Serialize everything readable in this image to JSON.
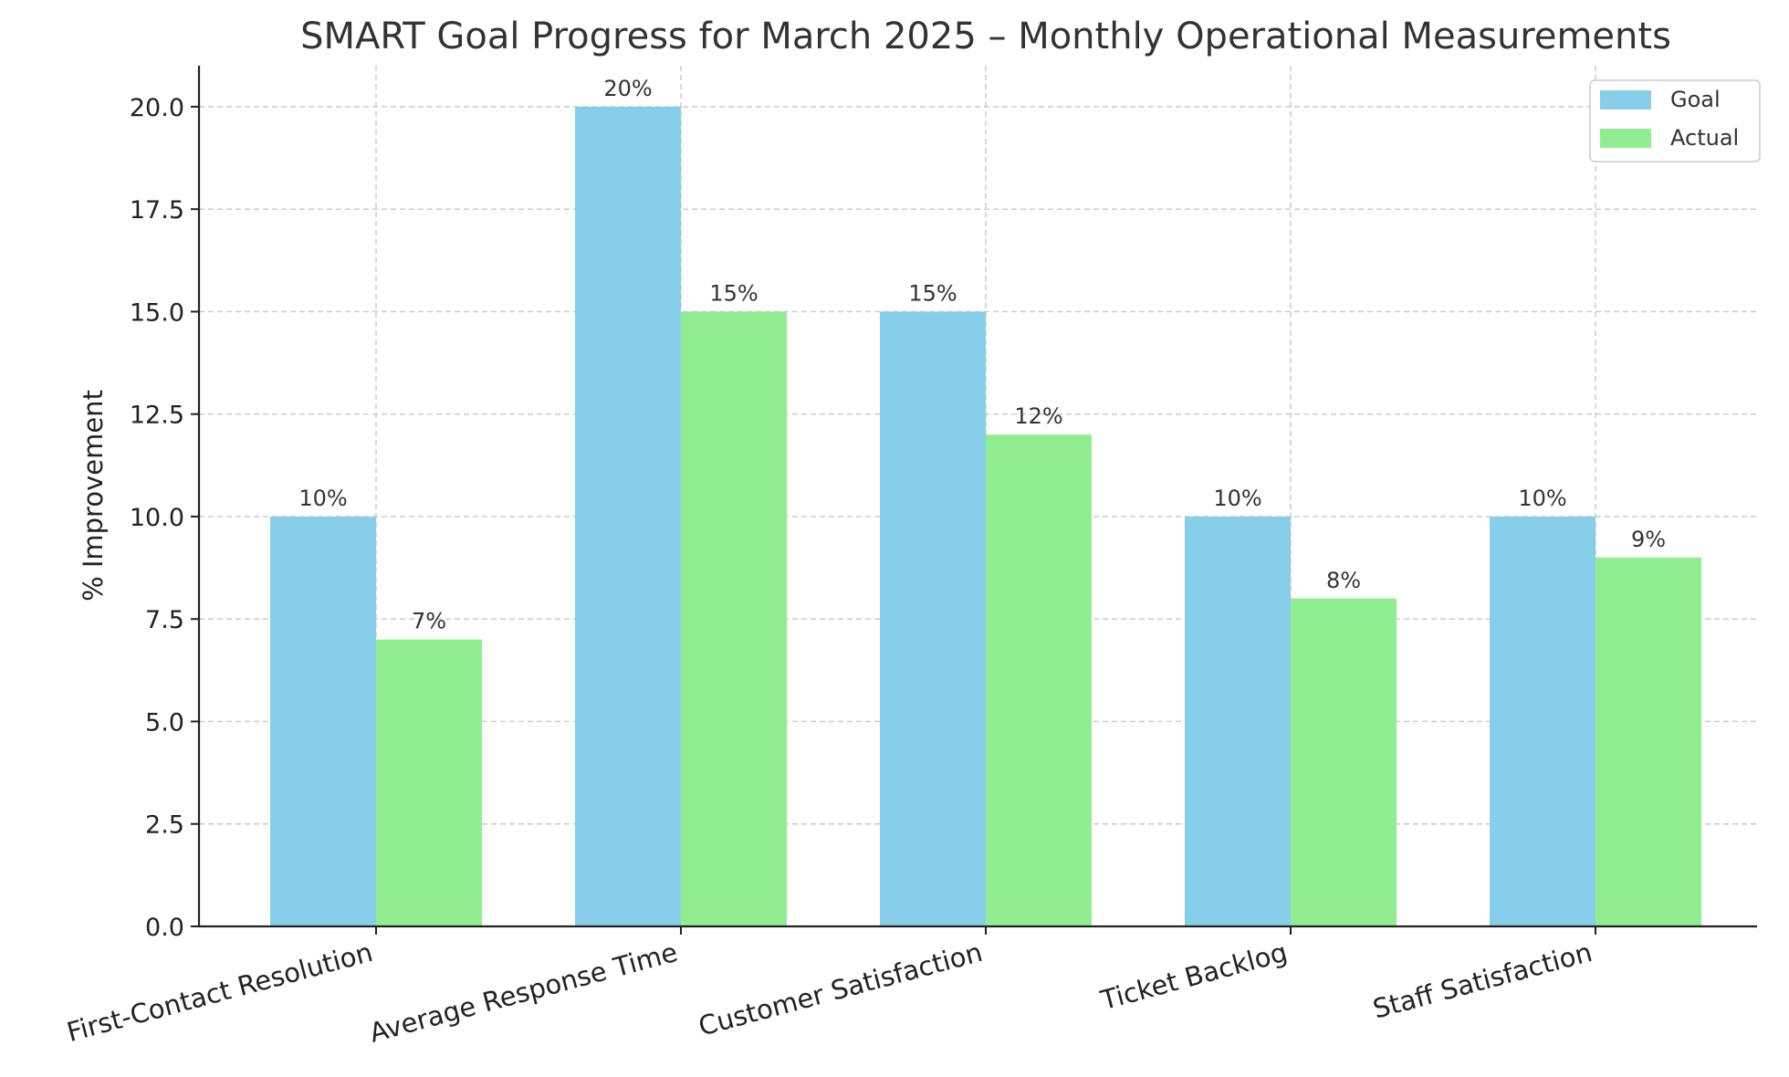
{
  "chart_data": {
    "type": "bar",
    "title": "SMART Goal Progress for March 2025 – Monthly Operational Measurements",
    "xlabel": "",
    "ylabel": "% Improvement",
    "categories": [
      "First-Contact Resolution",
      "Average Response Time",
      "Customer Satisfaction",
      "Ticket Backlog",
      "Staff Satisfaction"
    ],
    "series": [
      {
        "name": "Goal",
        "values": [
          10,
          20,
          15,
          10,
          10
        ],
        "labels": [
          "10%",
          "20%",
          "15%",
          "10%",
          "10%"
        ],
        "color": "#87ceeb"
      },
      {
        "name": "Actual",
        "values": [
          7,
          15,
          12,
          8,
          9
        ],
        "labels": [
          "7%",
          "15%",
          "12%",
          "8%",
          "9%"
        ],
        "color": "#90ee90"
      }
    ],
    "ylim": [
      0,
      21
    ],
    "yticks": [
      "0.0",
      "2.5",
      "5.0",
      "7.5",
      "10.0",
      "12.5",
      "15.0",
      "17.5",
      "20.0"
    ],
    "grid": true,
    "legend_position": "top-right"
  }
}
